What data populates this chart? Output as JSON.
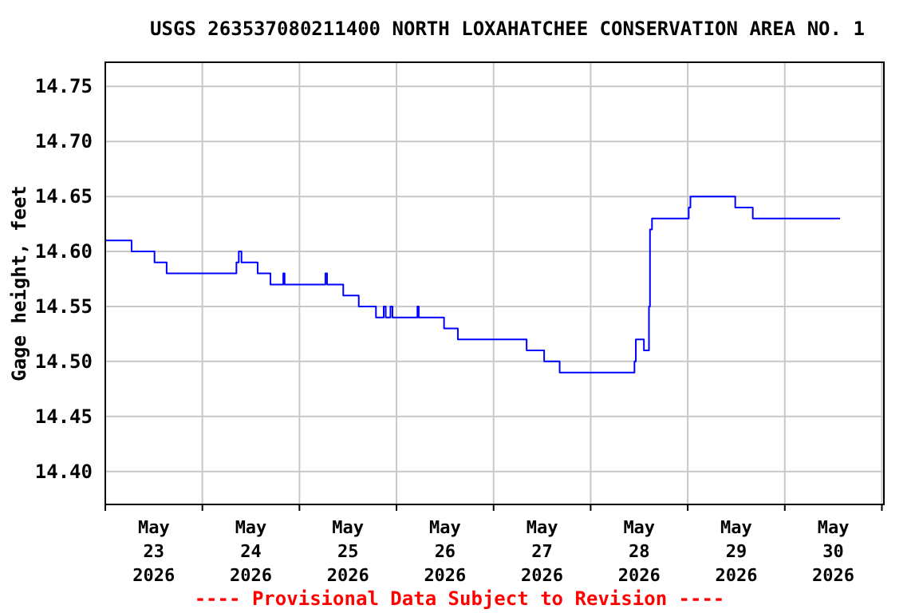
{
  "chart_data": {
    "type": "step",
    "title": "USGS 263537080211400 NORTH LOXAHATCHEE CONSERVATION AREA NO. 1",
    "ylabel": "Gage height, feet",
    "annotations": [
      "---- Provisional Data Subject to Revision ----"
    ],
    "x": [
      "2026-05-23T00:00",
      "2026-05-23T06:30",
      "2026-05-23T12:10",
      "2026-05-23T15:10",
      "2026-05-24T08:25",
      "2026-05-24T09:00",
      "2026-05-24T09:40",
      "2026-05-24T13:40",
      "2026-05-24T16:50",
      "2026-05-24T20:00",
      "2026-05-24T20:20",
      "2026-05-25T06:25",
      "2026-05-25T06:50",
      "2026-05-25T10:50",
      "2026-05-25T14:40",
      "2026-05-25T18:55",
      "2026-05-25T20:50",
      "2026-05-25T21:20",
      "2026-05-25T22:30",
      "2026-05-25T23:00",
      "2026-05-26T05:10",
      "2026-05-26T05:30",
      "2026-05-26T11:45",
      "2026-05-26T15:10",
      "2026-05-27T08:10",
      "2026-05-27T12:30",
      "2026-05-27T16:20",
      "2026-05-28T10:50",
      "2026-05-28T11:10",
      "2026-05-28T13:10",
      "2026-05-28T14:25",
      "2026-05-28T14:40",
      "2026-05-28T15:10",
      "2026-05-29T00:15",
      "2026-05-29T00:40",
      "2026-05-29T11:45",
      "2026-05-29T16:05",
      "2026-05-30T13:40"
    ],
    "series": [
      {
        "color": "#0000ff",
        "values": [
          14.61,
          14.6,
          14.59,
          14.58,
          14.59,
          14.6,
          14.59,
          14.58,
          14.57,
          14.58,
          14.57,
          14.58,
          14.57,
          14.56,
          14.55,
          14.54,
          14.55,
          14.54,
          14.55,
          14.54,
          14.55,
          14.54,
          14.53,
          14.52,
          14.51,
          14.5,
          14.49,
          14.5,
          14.52,
          14.51,
          14.55,
          14.62,
          14.63,
          14.64,
          14.65,
          14.64,
          14.63,
          14.63
        ]
      }
    ],
    "xlim": [
      "2026-05-23T00:00",
      "2026-05-31T00:30"
    ],
    "xticks": [
      {
        "value": "2026-05-23T00:00",
        "label": null
      },
      {
        "value": "2026-05-23T12:00",
        "label": "May\n23\n2026"
      },
      {
        "value": "2026-05-24T00:00",
        "label": null
      },
      {
        "value": "2026-05-24T12:00",
        "label": "May\n24\n2026"
      },
      {
        "value": "2026-05-25T00:00",
        "label": null
      },
      {
        "value": "2026-05-25T12:00",
        "label": "May\n25\n2026"
      },
      {
        "value": "2026-05-26T00:00",
        "label": null
      },
      {
        "value": "2026-05-26T12:00",
        "label": "May\n26\n2026"
      },
      {
        "value": "2026-05-27T00:00",
        "label": null
      },
      {
        "value": "2026-05-27T12:00",
        "label": "May\n27\n2026"
      },
      {
        "value": "2026-05-28T00:00",
        "label": null
      },
      {
        "value": "2026-05-28T12:00",
        "label": "May\n28\n2026"
      },
      {
        "value": "2026-05-29T00:00",
        "label": null
      },
      {
        "value": "2026-05-29T12:00",
        "label": "May\n29\n2026"
      },
      {
        "value": "2026-05-30T00:00",
        "label": null
      },
      {
        "value": "2026-05-30T12:00",
        "label": "May\n30\n2026"
      },
      {
        "value": "2026-05-31T00:00",
        "label": null
      }
    ],
    "ylim": [
      14.37,
      14.772
    ],
    "yticks": [
      {
        "value": 14.4,
        "label": "14.40"
      },
      {
        "value": 14.45,
        "label": "14.45"
      },
      {
        "value": 14.5,
        "label": "14.50"
      },
      {
        "value": 14.55,
        "label": "14.55"
      },
      {
        "value": 14.6,
        "label": "14.60"
      },
      {
        "value": 14.65,
        "label": "14.65"
      },
      {
        "value": 14.7,
        "label": "14.70"
      },
      {
        "value": 14.75,
        "label": "14.75"
      }
    ],
    "grid": true
  }
}
